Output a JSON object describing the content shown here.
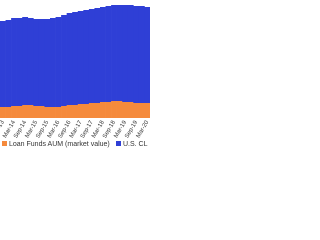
{
  "chart_data": {
    "type": "bar",
    "stacked": true,
    "categories": [
      "Sep-13",
      null,
      "Mar-14",
      null,
      "Sep-14",
      null,
      "Mar-15",
      null,
      "Sep-15",
      null,
      "Mar-16",
      null,
      "Sep-16",
      null,
      "Mar-17",
      null,
      "Sep-17",
      null,
      "Mar-18",
      null,
      "Sep-18",
      null,
      "Mar-19",
      null,
      "Sep-19",
      null,
      "Mar-20"
    ],
    "series": [
      {
        "name": "Loan Funds AUM (market value)",
        "color": "#f58a3c",
        "values": [
          11,
          11,
          12,
          12,
          13,
          13,
          12,
          12,
          11,
          11,
          11,
          12,
          13,
          13,
          14,
          14,
          15,
          15,
          16,
          16,
          17,
          17,
          16,
          16,
          15,
          15,
          15
        ]
      },
      {
        "name": "U.S. CL",
        "color": "#2f3fd6",
        "values": [
          86,
          87,
          88,
          88,
          88,
          87,
          87,
          87,
          88,
          89,
          90,
          91,
          92,
          93,
          93,
          94,
          94,
          95,
          95,
          96,
          96,
          96,
          97,
          97,
          97,
          97,
          96
        ]
      }
    ],
    "ylim": [
      0,
      118
    ]
  }
}
